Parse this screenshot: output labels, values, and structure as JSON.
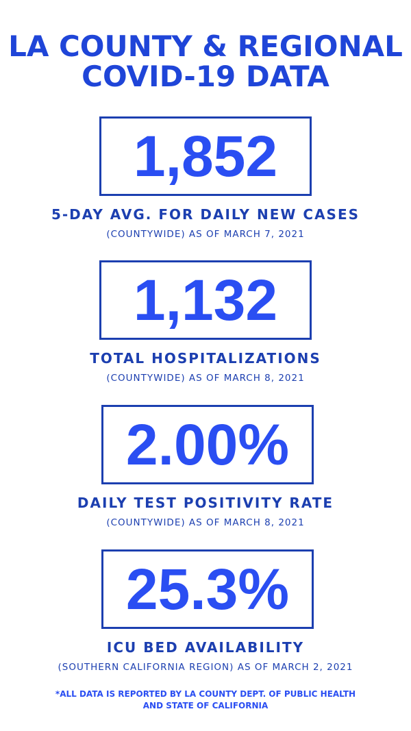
{
  "header": {
    "title": [
      "LA COUNTY & REGIONAL",
      "COVID-19 DATA"
    ]
  },
  "stats": [
    {
      "value": "1,852",
      "label": "5-DAY AVG. FOR DAILY NEW CASES",
      "note": "(COUNTYWIDE) AS OF MARCH 7, 2021"
    },
    {
      "value": "1,132",
      "label": "TOTAL HOSPITALIZATIONS",
      "note": "(COUNTYWIDE) AS OF MARCH 8, 2021"
    },
    {
      "value": "2.00%",
      "label": "DAILY TEST POSITIVITY RATE",
      "note": "(COUNTYWIDE) AS OF MARCH 8, 2021"
    },
    {
      "value": "25.3%",
      "label": "ICU BED AVAILABILITY",
      "note": "(SOUTHERN CALIFORNIA REGION) AS OF MARCH 2, 2021"
    }
  ],
  "footer": [
    "*ALL DATA IS REPORTED BY LA COUNTY DEPT. OF PUBLIC HEALTH",
    "AND STATE OF CALIFORNIA"
  ]
}
